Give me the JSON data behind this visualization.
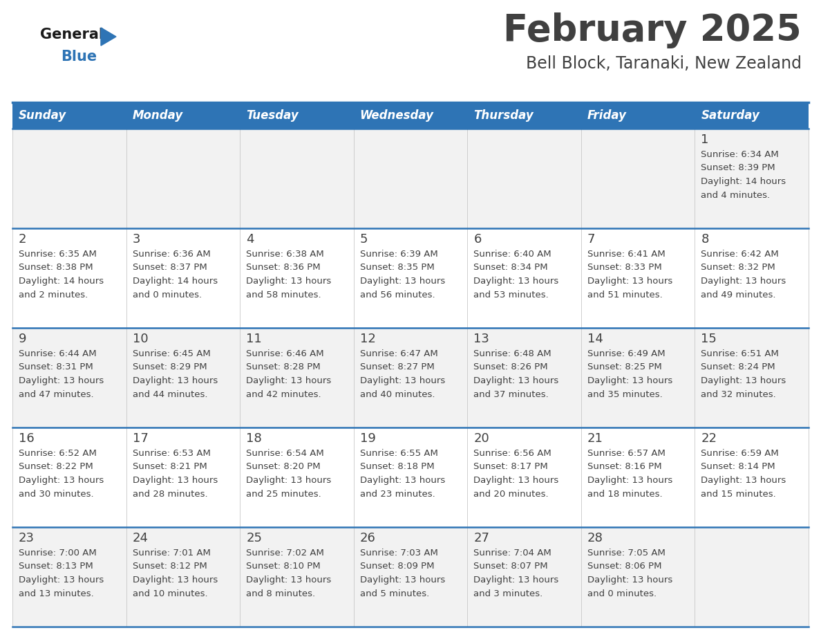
{
  "title": "February 2025",
  "subtitle": "Bell Block, Taranaki, New Zealand",
  "days_of_week": [
    "Sunday",
    "Monday",
    "Tuesday",
    "Wednesday",
    "Thursday",
    "Friday",
    "Saturday"
  ],
  "header_bg": "#2E74B5",
  "header_text": "#FFFFFF",
  "cell_bg_odd": "#F2F2F2",
  "cell_bg_even": "#FFFFFF",
  "row_line_color": "#2E74B5",
  "text_color": "#404040",
  "calendar_data": [
    [
      null,
      null,
      null,
      null,
      null,
      null,
      {
        "day": "1",
        "sunrise": "6:34 AM",
        "sunset": "8:39 PM",
        "daylight_h": "14 hours",
        "daylight_m": "and 4 minutes."
      }
    ],
    [
      {
        "day": "2",
        "sunrise": "6:35 AM",
        "sunset": "8:38 PM",
        "daylight_h": "14 hours",
        "daylight_m": "and 2 minutes."
      },
      {
        "day": "3",
        "sunrise": "6:36 AM",
        "sunset": "8:37 PM",
        "daylight_h": "14 hours",
        "daylight_m": "and 0 minutes."
      },
      {
        "day": "4",
        "sunrise": "6:38 AM",
        "sunset": "8:36 PM",
        "daylight_h": "13 hours",
        "daylight_m": "and 58 minutes."
      },
      {
        "day": "5",
        "sunrise": "6:39 AM",
        "sunset": "8:35 PM",
        "daylight_h": "13 hours",
        "daylight_m": "and 56 minutes."
      },
      {
        "day": "6",
        "sunrise": "6:40 AM",
        "sunset": "8:34 PM",
        "daylight_h": "13 hours",
        "daylight_m": "and 53 minutes."
      },
      {
        "day": "7",
        "sunrise": "6:41 AM",
        "sunset": "8:33 PM",
        "daylight_h": "13 hours",
        "daylight_m": "and 51 minutes."
      },
      {
        "day": "8",
        "sunrise": "6:42 AM",
        "sunset": "8:32 PM",
        "daylight_h": "13 hours",
        "daylight_m": "and 49 minutes."
      }
    ],
    [
      {
        "day": "9",
        "sunrise": "6:44 AM",
        "sunset": "8:31 PM",
        "daylight_h": "13 hours",
        "daylight_m": "and 47 minutes."
      },
      {
        "day": "10",
        "sunrise": "6:45 AM",
        "sunset": "8:29 PM",
        "daylight_h": "13 hours",
        "daylight_m": "and 44 minutes."
      },
      {
        "day": "11",
        "sunrise": "6:46 AM",
        "sunset": "8:28 PM",
        "daylight_h": "13 hours",
        "daylight_m": "and 42 minutes."
      },
      {
        "day": "12",
        "sunrise": "6:47 AM",
        "sunset": "8:27 PM",
        "daylight_h": "13 hours",
        "daylight_m": "and 40 minutes."
      },
      {
        "day": "13",
        "sunrise": "6:48 AM",
        "sunset": "8:26 PM",
        "daylight_h": "13 hours",
        "daylight_m": "and 37 minutes."
      },
      {
        "day": "14",
        "sunrise": "6:49 AM",
        "sunset": "8:25 PM",
        "daylight_h": "13 hours",
        "daylight_m": "and 35 minutes."
      },
      {
        "day": "15",
        "sunrise": "6:51 AM",
        "sunset": "8:24 PM",
        "daylight_h": "13 hours",
        "daylight_m": "and 32 minutes."
      }
    ],
    [
      {
        "day": "16",
        "sunrise": "6:52 AM",
        "sunset": "8:22 PM",
        "daylight_h": "13 hours",
        "daylight_m": "and 30 minutes."
      },
      {
        "day": "17",
        "sunrise": "6:53 AM",
        "sunset": "8:21 PM",
        "daylight_h": "13 hours",
        "daylight_m": "and 28 minutes."
      },
      {
        "day": "18",
        "sunrise": "6:54 AM",
        "sunset": "8:20 PM",
        "daylight_h": "13 hours",
        "daylight_m": "and 25 minutes."
      },
      {
        "day": "19",
        "sunrise": "6:55 AM",
        "sunset": "8:18 PM",
        "daylight_h": "13 hours",
        "daylight_m": "and 23 minutes."
      },
      {
        "day": "20",
        "sunrise": "6:56 AM",
        "sunset": "8:17 PM",
        "daylight_h": "13 hours",
        "daylight_m": "and 20 minutes."
      },
      {
        "day": "21",
        "sunrise": "6:57 AM",
        "sunset": "8:16 PM",
        "daylight_h": "13 hours",
        "daylight_m": "and 18 minutes."
      },
      {
        "day": "22",
        "sunrise": "6:59 AM",
        "sunset": "8:14 PM",
        "daylight_h": "13 hours",
        "daylight_m": "and 15 minutes."
      }
    ],
    [
      {
        "day": "23",
        "sunrise": "7:00 AM",
        "sunset": "8:13 PM",
        "daylight_h": "13 hours",
        "daylight_m": "and 13 minutes."
      },
      {
        "day": "24",
        "sunrise": "7:01 AM",
        "sunset": "8:12 PM",
        "daylight_h": "13 hours",
        "daylight_m": "and 10 minutes."
      },
      {
        "day": "25",
        "sunrise": "7:02 AM",
        "sunset": "8:10 PM",
        "daylight_h": "13 hours",
        "daylight_m": "and 8 minutes."
      },
      {
        "day": "26",
        "sunrise": "7:03 AM",
        "sunset": "8:09 PM",
        "daylight_h": "13 hours",
        "daylight_m": "and 5 minutes."
      },
      {
        "day": "27",
        "sunrise": "7:04 AM",
        "sunset": "8:07 PM",
        "daylight_h": "13 hours",
        "daylight_m": "and 3 minutes."
      },
      {
        "day": "28",
        "sunrise": "7:05 AM",
        "sunset": "8:06 PM",
        "daylight_h": "13 hours",
        "daylight_m": "and 0 minutes."
      },
      null
    ]
  ]
}
